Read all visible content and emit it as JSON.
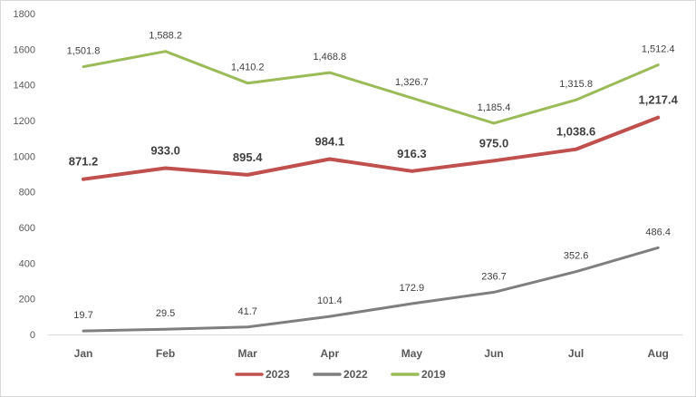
{
  "chart_data": {
    "type": "line",
    "categories": [
      "Jan",
      "Feb",
      "Mar",
      "Apr",
      "May",
      "Jun",
      "Jul",
      "Aug"
    ],
    "y_ticks": [
      "0",
      "200",
      "400",
      "600",
      "800",
      "1000",
      "1200",
      "1400",
      "1600",
      "1800"
    ],
    "ylim": [
      0,
      1800
    ],
    "grid": false,
    "legend_position": "bottom",
    "series": [
      {
        "name": "2023",
        "color": "#c0504d",
        "bold_labels": true,
        "values": [
          871.2,
          933.0,
          895.4,
          984.1,
          916.3,
          975.0,
          1038.6,
          1217.4
        ],
        "labels": [
          "871.2",
          "933.0",
          "895.4",
          "984.1",
          "916.3",
          "975.0",
          "1,038.6",
          "1,217.4"
        ]
      },
      {
        "name": "2022",
        "color": "#7f7f7f",
        "bold_labels": false,
        "values": [
          19.7,
          29.5,
          41.7,
          101.4,
          172.9,
          236.7,
          352.6,
          486.4
        ],
        "labels": [
          "19.7",
          "29.5",
          "41.7",
          "101.4",
          "172.9",
          "236.7",
          "352.6",
          "486.4"
        ]
      },
      {
        "name": "2019",
        "color": "#9bbb59",
        "bold_labels": false,
        "values": [
          1501.8,
          1588.2,
          1410.2,
          1468.8,
          1326.7,
          1185.4,
          1315.8,
          1512.4
        ],
        "labels": [
          "1,501.8",
          "1,588.2",
          "1,410.2",
          "1,468.8",
          "1,326.7",
          "1,185.4",
          "1,315.8",
          "1,512.4"
        ]
      }
    ]
  }
}
